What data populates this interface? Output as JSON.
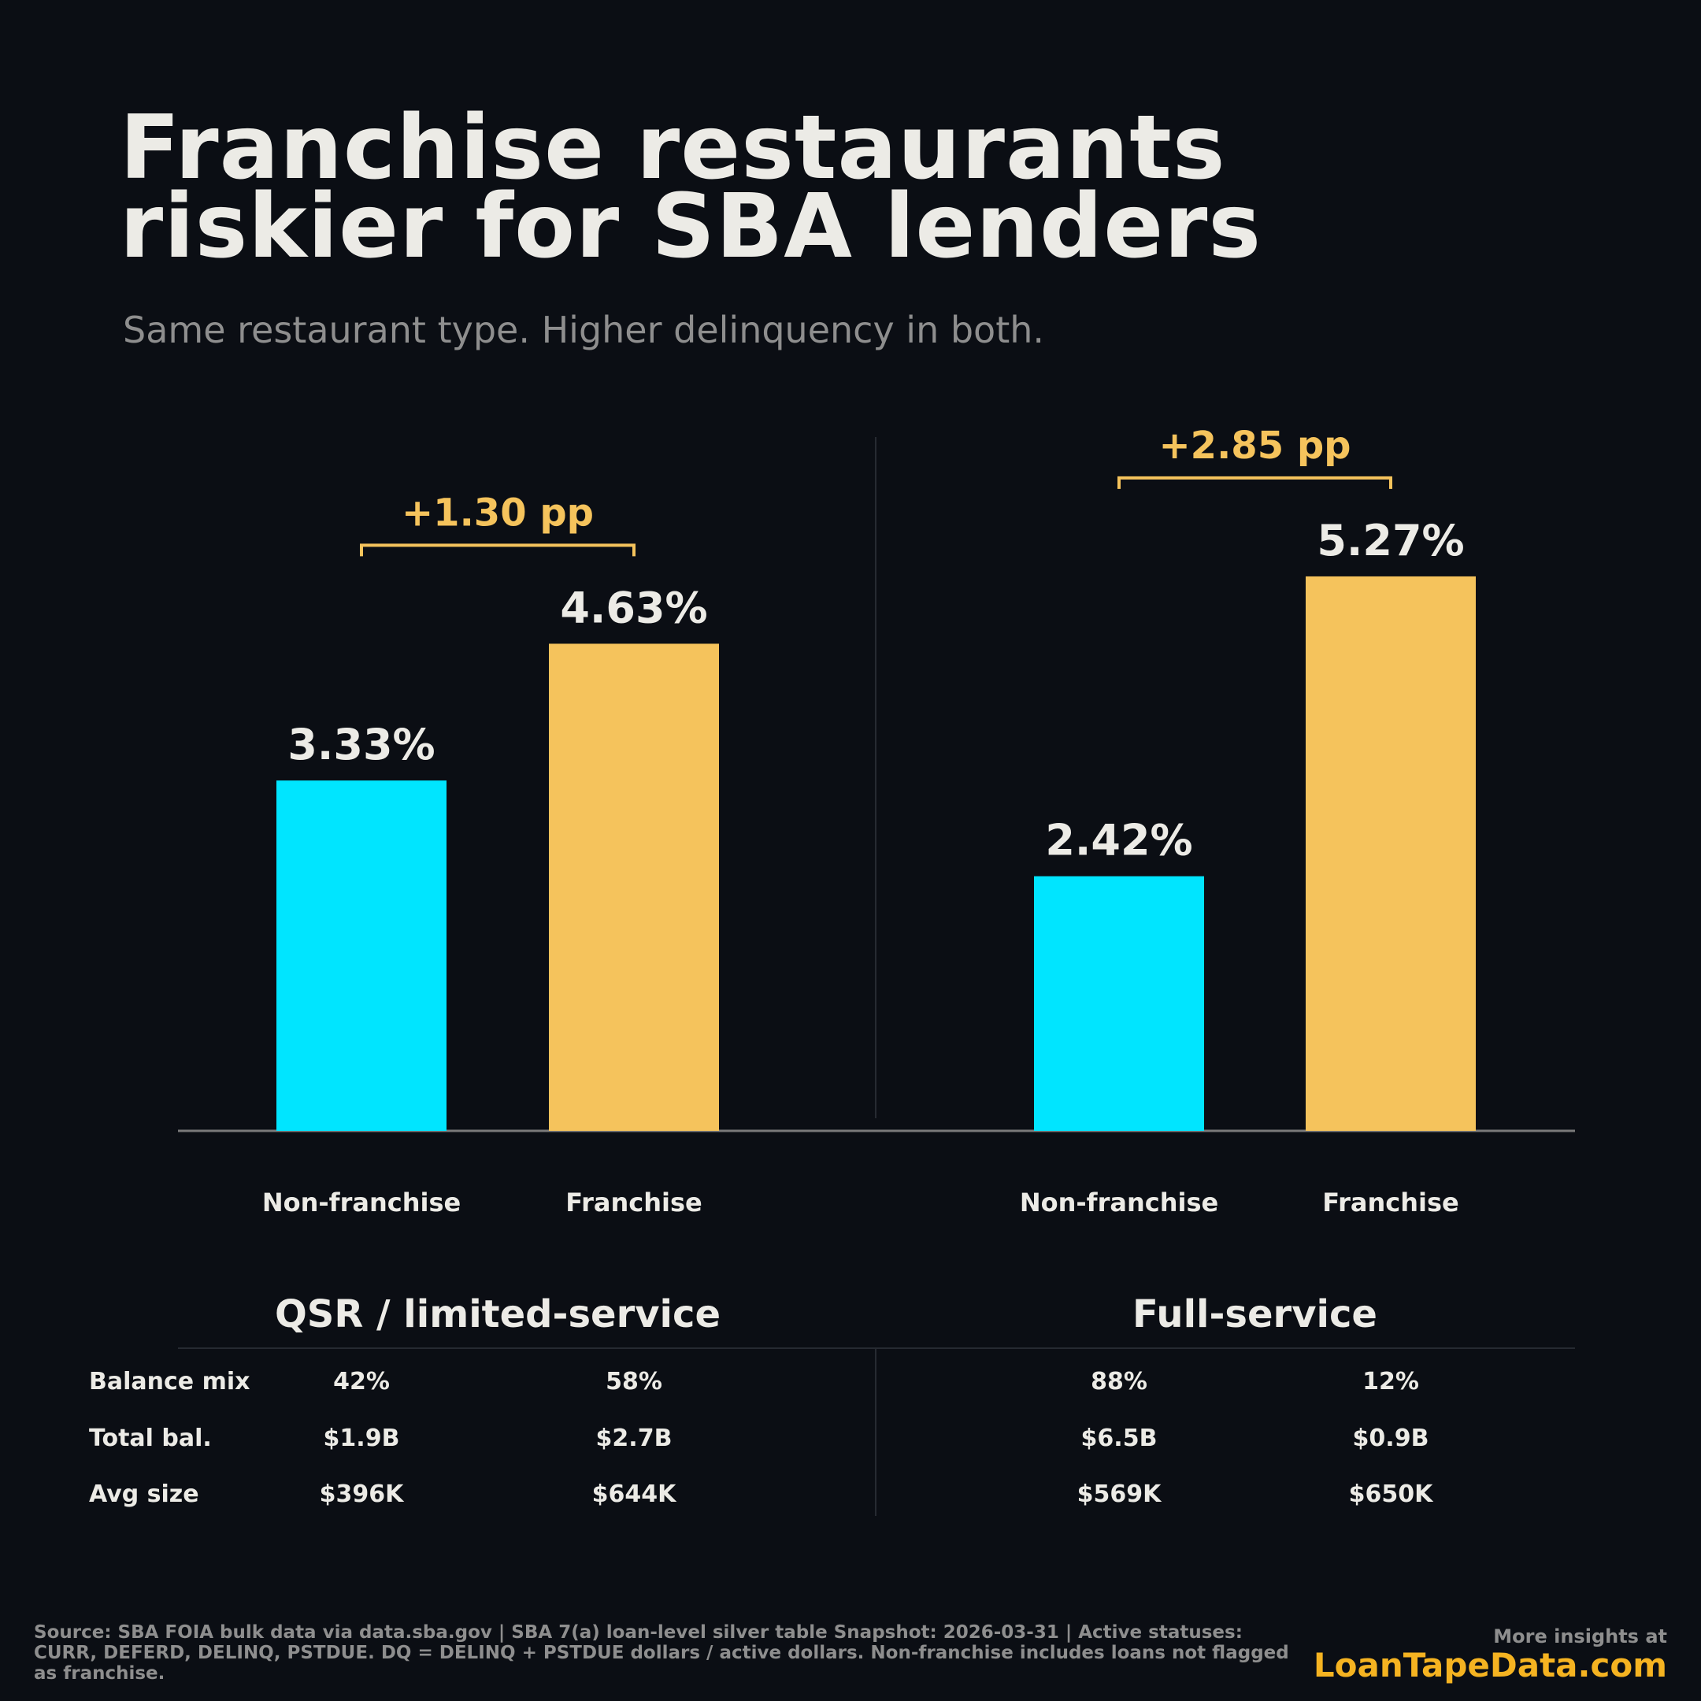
{
  "title_lines": [
    "Franchise restaurants",
    "riskier for SBA lenders"
  ],
  "subtitle": "Same restaurant type. Higher delinquency in both.",
  "colors": {
    "non_franchise": "#00e5ff",
    "franchise": "#f5c35c",
    "delta": "#f5c35c",
    "text": "#ecebe6",
    "muted": "#8e8e8e",
    "brand": "#f5b321"
  },
  "chart_data": {
    "type": "bar",
    "ylabel": "",
    "ylim": [
      0,
      5.6
    ],
    "categories": [
      "Non-franchise",
      "Franchise"
    ],
    "panels": [
      {
        "name": "QSR / limited-service",
        "values": [
          3.33,
          4.63
        ],
        "value_labels": [
          "3.33%",
          "4.63%"
        ],
        "delta_label": "+1.30 pp"
      },
      {
        "name": "Full-service",
        "values": [
          2.42,
          5.27
        ],
        "value_labels": [
          "2.42%",
          "5.27%"
        ],
        "delta_label": "+2.85 pp"
      }
    ]
  },
  "table": {
    "row_labels": [
      "Balance mix",
      "Total bal.",
      "Avg size"
    ],
    "panels": [
      {
        "rows": [
          [
            "42%",
            "58%"
          ],
          [
            "$1.9B",
            "$2.7B"
          ],
          [
            "$396K",
            "$644K"
          ]
        ]
      },
      {
        "rows": [
          [
            "88%",
            "12%"
          ],
          [
            "$6.5B",
            "$0.9B"
          ],
          [
            "$569K",
            "$650K"
          ]
        ]
      }
    ]
  },
  "footer": {
    "source": "Source: SBA FOIA bulk data via data.sba.gov | SBA 7(a) loan-level silver table Snapshot: 2026-03-31 | Active statuses: CURR, DEFERD, DELINQ, PSTDUE. DQ = DELINQ + PSTDUE dollars / active dollars. Non-franchise includes loans not flagged as franchise.",
    "more": "More insights at",
    "brand": "LoanTapeData.com"
  }
}
